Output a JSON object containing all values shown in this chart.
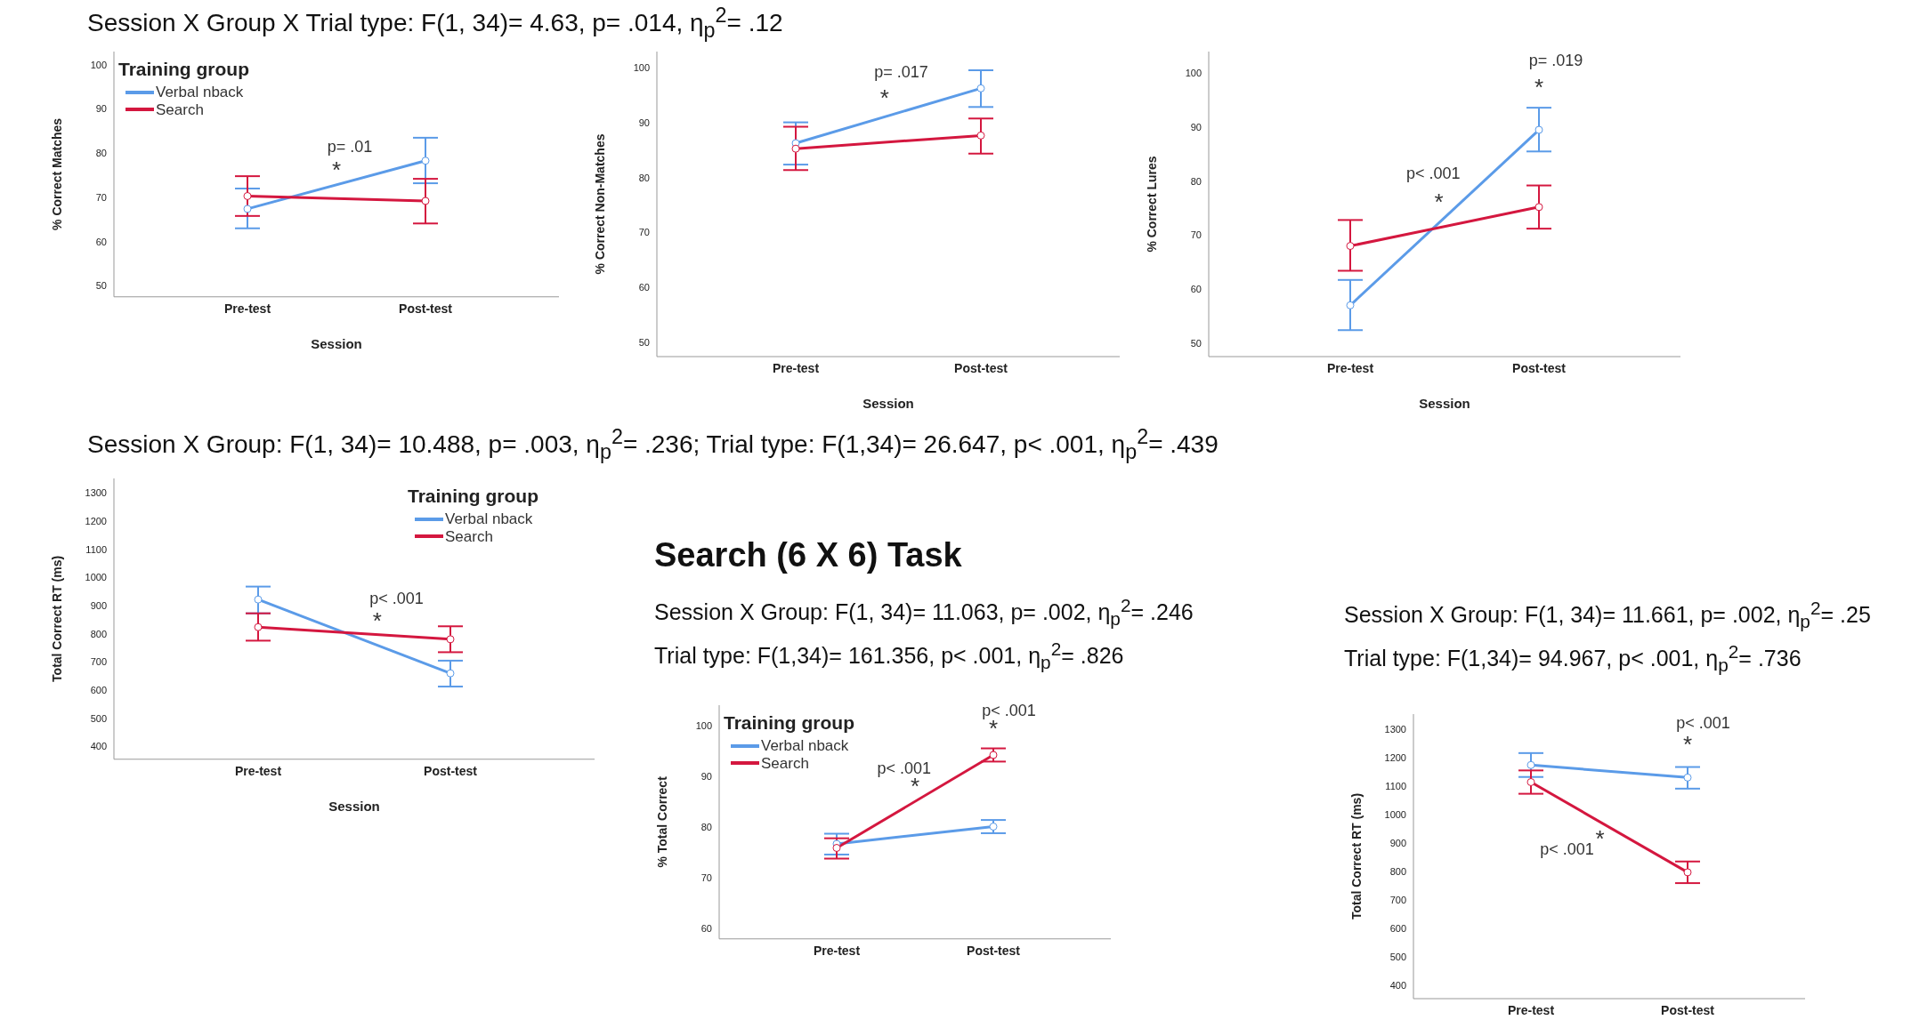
{
  "chart_data": [
    {
      "type": "line",
      "title": "Session X Group X Trial type: F(1, 34)= 4.63, p= .014, η$_{p}$$^{2}$= .12",
      "categories": [
        "Pre-test",
        "Post-test"
      ],
      "xlabel": "Session",
      "ylabel": "% Correct Matches",
      "ylim": [
        47.5,
        103
      ],
      "yticks": [
        50,
        60,
        70,
        80,
        90,
        100
      ],
      "legend": "top left",
      "legend_title": "Training group",
      "marker": "circle",
      "line_style": "solid",
      "series": [
        {
          "name": "Verbal nback",
          "color": "#5b9be8",
          "values": [
            67.4,
            78.3
          ],
          "errors": [
            [
              63,
              72
            ],
            [
              73.2,
              83.5
            ]
          ]
        },
        {
          "name": "Search",
          "color": "#d4173f",
          "values": [
            70.3,
            69.2
          ],
          "errors": [
            [
              65.8,
              74.8
            ],
            [
              64.1,
              74.2
            ]
          ]
        }
      ],
      "annotations": [
        "p= .01",
        "*"
      ]
    },
    {
      "type": "line",
      "categories": [
        "Pre-test",
        "Post-test"
      ],
      "xlabel": "Session",
      "ylabel": "% Correct Non-Matches",
      "ylim": [
        47.4,
        103
      ],
      "yticks": [
        50,
        60,
        70,
        80,
        90,
        100
      ],
      "marker": "circle",
      "line_style": "solid",
      "series": [
        {
          "color": "#5b9be8",
          "values": [
            86.3,
            96.3
          ],
          "errors": [
            [
              82.4,
              90.1
            ],
            [
              92.9,
              99.6
            ]
          ]
        },
        {
          "color": "#d4173f",
          "values": [
            85.3,
            87.7
          ],
          "errors": [
            [
              81.4,
              89.3
            ],
            [
              84.4,
              90.8
            ]
          ]
        }
      ],
      "annotations": [
        "p= .017",
        "*"
      ]
    },
    {
      "type": "line",
      "categories": [
        "Pre-test",
        "Post-test"
      ],
      "xlabel": "Session",
      "ylabel": "% Correct Lures",
      "ylim": [
        47.5,
        104
      ],
      "yticks": [
        50,
        60,
        70,
        80,
        90,
        100
      ],
      "marker": "circle",
      "line_style": "solid",
      "series": [
        {
          "color": "#5b9be8",
          "values": [
            57,
            89.5
          ],
          "errors": [
            [
              52.4,
              61.7
            ],
            [
              85.5,
              93.6
            ]
          ]
        },
        {
          "color": "#d4173f",
          "values": [
            68,
            75.2
          ],
          "errors": [
            [
              63.4,
              72.8
            ],
            [
              71.2,
              79.2
            ]
          ]
        }
      ],
      "annotations": [
        "p< .001",
        "*",
        "p= .019",
        "*"
      ]
    },
    {
      "type": "line",
      "title": "Session X Group: F(1, 34)= 10.488, p= .003, η$_{p}$$^{2}$= .236; Trial type: F(1,34)= 26.647, p< .001, η$_{p}$$^{2}$= .439",
      "categories": [
        "Pre-test",
        "Post-test"
      ],
      "xlabel": "Session",
      "ylabel": "Total Correct RT (ms)",
      "ylim": [
        355,
        1352
      ],
      "yticks": [
        400,
        500,
        600,
        700,
        800,
        900,
        1000,
        1100,
        1200,
        1300
      ],
      "legend": "top right",
      "legend_title": "Training group",
      "marker": "circle",
      "line_style": "solid",
      "series": [
        {
          "name": "Verbal nback",
          "color": "#5b9be8",
          "values": [
            922,
            660
          ],
          "errors": [
            [
              873,
              968
            ],
            [
              613,
              705
            ]
          ]
        },
        {
          "name": "Search",
          "color": "#d4173f",
          "values": [
            824,
            781
          ],
          "errors": [
            [
              776,
              873
            ],
            [
              735,
              827
            ]
          ]
        }
      ],
      "annotations": [
        "p< .001",
        "*"
      ]
    },
    {
      "type": "line",
      "title": "Search (6 X 6) Task",
      "subtitle": "Session X Group: F(1, 34)= 11.063, p= .002, η$_{p}$$^{2}$= .246\nTrial type: F(1,34)= 161.356, p< .001, η$_{p}$$^{2}$= .826",
      "categories": [
        "Pre-test",
        "Post-test"
      ],
      "ylabel": "% Total Correct",
      "ylim": [
        58,
        104
      ],
      "yticks": [
        60,
        70,
        80,
        90,
        100
      ],
      "legend": "top left",
      "legend_title": "Training group",
      "marker": "circle",
      "line_style": "solid",
      "series": [
        {
          "name": "Verbal nback",
          "color": "#5b9be8",
          "values": [
            76.7,
            80.1
          ],
          "errors": [
            [
              74.6,
              78.7
            ],
            [
              78.8,
              81.4
            ]
          ]
        },
        {
          "name": "Search",
          "color": "#d4173f",
          "values": [
            75.9,
            94.2
          ],
          "errors": [
            [
              73.8,
              77.8
            ],
            [
              92.9,
              95.5
            ]
          ]
        }
      ],
      "annotations": [
        "p< .001",
        "*",
        "p< .001",
        "*"
      ]
    },
    {
      "type": "line",
      "subtitle": "Session X Group: F(1, 34)= 11.661, p= .002, η$_{p}$$^{2}$= .25\nTrial type: F(1,34)= 94.967, p< .001, η$_{p}$$^{2}$= .736",
      "categories": [
        "Pre-test",
        "Post-test"
      ],
      "ylabel": "Total Correct RT (ms)",
      "ylim": [
        353,
        1353
      ],
      "yticks": [
        400,
        500,
        600,
        700,
        800,
        900,
        1000,
        1100,
        1200,
        1300
      ],
      "marker": "circle",
      "line_style": "solid",
      "series": [
        {
          "color": "#5b9be8",
          "values": [
            1174,
            1130
          ],
          "errors": [
            [
              1132,
              1216
            ],
            [
              1091,
              1167
            ]
          ]
        },
        {
          "color": "#d4173f",
          "values": [
            1114,
            797
          ],
          "errors": [
            [
              1073,
              1155
            ],
            [
              759,
              835
            ]
          ]
        }
      ],
      "annotations": [
        "p< .001",
        "*",
        "p< .001",
        "*"
      ]
    }
  ]
}
